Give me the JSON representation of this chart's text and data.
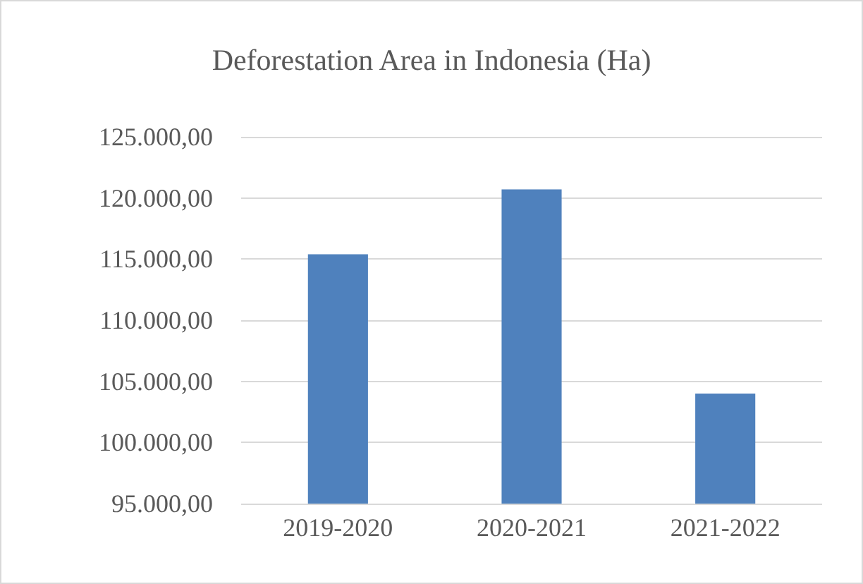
{
  "chart_data": {
    "type": "bar",
    "title": "Deforestation Area in Indonesia (Ha)",
    "categories": [
      "2019-2020",
      "2020-2021",
      "2021-2022"
    ],
    "values": [
      115400,
      120700,
      104000
    ],
    "color": "#4f81bd",
    "ylim": [
      95000,
      125000
    ],
    "yticks": [
      {
        "value": 95000,
        "label": "95.000,00"
      },
      {
        "value": 100000,
        "label": "100.000,00"
      },
      {
        "value": 105000,
        "label": "105.000,00"
      },
      {
        "value": 110000,
        "label": "110.000,00"
      },
      {
        "value": 115000,
        "label": "115.000,00"
      },
      {
        "value": 120000,
        "label": "120.000,00"
      },
      {
        "value": 125000,
        "label": "125.000,00"
      }
    ],
    "grid": "y"
  }
}
